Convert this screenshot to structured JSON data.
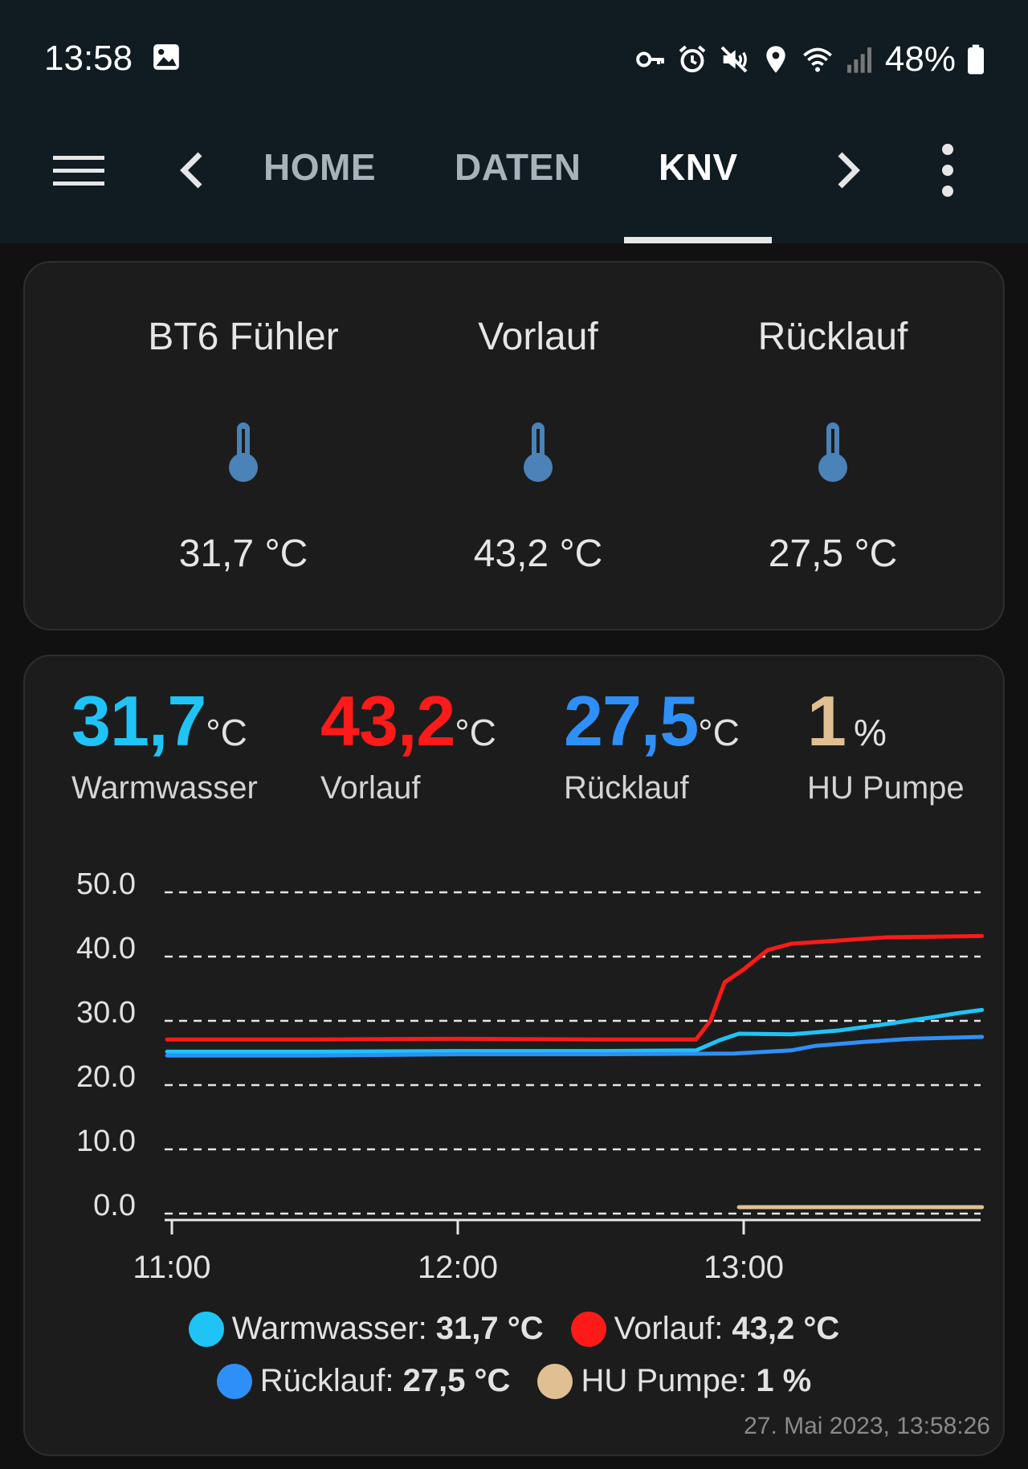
{
  "status_bar": {
    "time": "13:58",
    "battery": "48%",
    "icons": [
      "image-icon",
      "vpn-key-icon",
      "alarm-icon",
      "mute-icon",
      "location-icon",
      "wifi-icon",
      "signal-icon",
      "battery-icon"
    ]
  },
  "app_bar": {
    "tabs": [
      {
        "label": "HOME",
        "active": false
      },
      {
        "label": "DATEN",
        "active": false
      },
      {
        "label": "KNV",
        "active": true
      }
    ]
  },
  "sensors": [
    {
      "name": "BT6 Fühler",
      "value": "31,7 °C"
    },
    {
      "name": "Vorlauf",
      "value": "43,2 °C"
    },
    {
      "name": "Rücklauf",
      "value": "27,5 °C"
    }
  ],
  "summary": [
    {
      "value": "31,7",
      "unit": "°C",
      "name": "Warmwasser",
      "color": "#1ec4f6"
    },
    {
      "value": "43,2",
      "unit": "°C",
      "name": "Vorlauf",
      "color": "#ff1a1a"
    },
    {
      "value": "27,5",
      "unit": "°C",
      "name": "Rücklauf",
      "color": "#2f8ff8"
    },
    {
      "value": "1",
      "unit": "%",
      "name": "HU Pumpe",
      "color": "#e0c092"
    }
  ],
  "chart_data": {
    "type": "line",
    "x_ticks": [
      "11:00",
      "12:00",
      "13:00"
    ],
    "y_ticks": [
      "0.0",
      "10.0",
      "20.0",
      "30.0",
      "40.0",
      "50.0"
    ],
    "ylim": [
      0,
      50
    ],
    "grid": true,
    "legend_position": "bottom",
    "series": [
      {
        "name": "Warmwasser",
        "color": "#1ec4f6",
        "legend_value": "31,7 °C",
        "x": [
          "10:59",
          "11:30",
          "12:00",
          "12:30",
          "12:50",
          "12:55",
          "12:59",
          "13:10",
          "13:20",
          "13:30",
          "13:40",
          "13:45",
          "13:50"
        ],
        "y": [
          25.2,
          25.2,
          25.3,
          25.3,
          25.4,
          27.0,
          28.0,
          27.9,
          28.5,
          29.5,
          30.6,
          31.2,
          31.7
        ]
      },
      {
        "name": "Vorlauf",
        "color": "#ff1a1a",
        "legend_value": "43,2 °C",
        "x": [
          "10:59",
          "11:30",
          "12:00",
          "12:30",
          "12:50",
          "12:53",
          "12:56",
          "13:00",
          "13:05",
          "13:10",
          "13:20",
          "13:30",
          "13:40",
          "13:50"
        ],
        "y": [
          27.1,
          27.1,
          27.2,
          27.1,
          27.1,
          30.0,
          36.0,
          38.0,
          41.0,
          42.0,
          42.5,
          43.0,
          43.1,
          43.2
        ]
      },
      {
        "name": "Rücklauf",
        "color": "#2f8ff8",
        "legend_value": "27,5 °C",
        "x": [
          "10:59",
          "11:30",
          "12:00",
          "12:30",
          "12:58",
          "13:10",
          "13:15",
          "13:25",
          "13:35",
          "13:50"
        ],
        "y": [
          24.6,
          24.6,
          24.8,
          24.8,
          24.9,
          25.4,
          26.1,
          26.7,
          27.2,
          27.5
        ]
      },
      {
        "name": "HU Pumpe",
        "color": "#e0c092",
        "legend_value": "1 %",
        "x": [
          "12:59",
          "13:50"
        ],
        "y": [
          1,
          1
        ]
      }
    ]
  },
  "timestamp": "27. Mai 2023, 13:58:26"
}
